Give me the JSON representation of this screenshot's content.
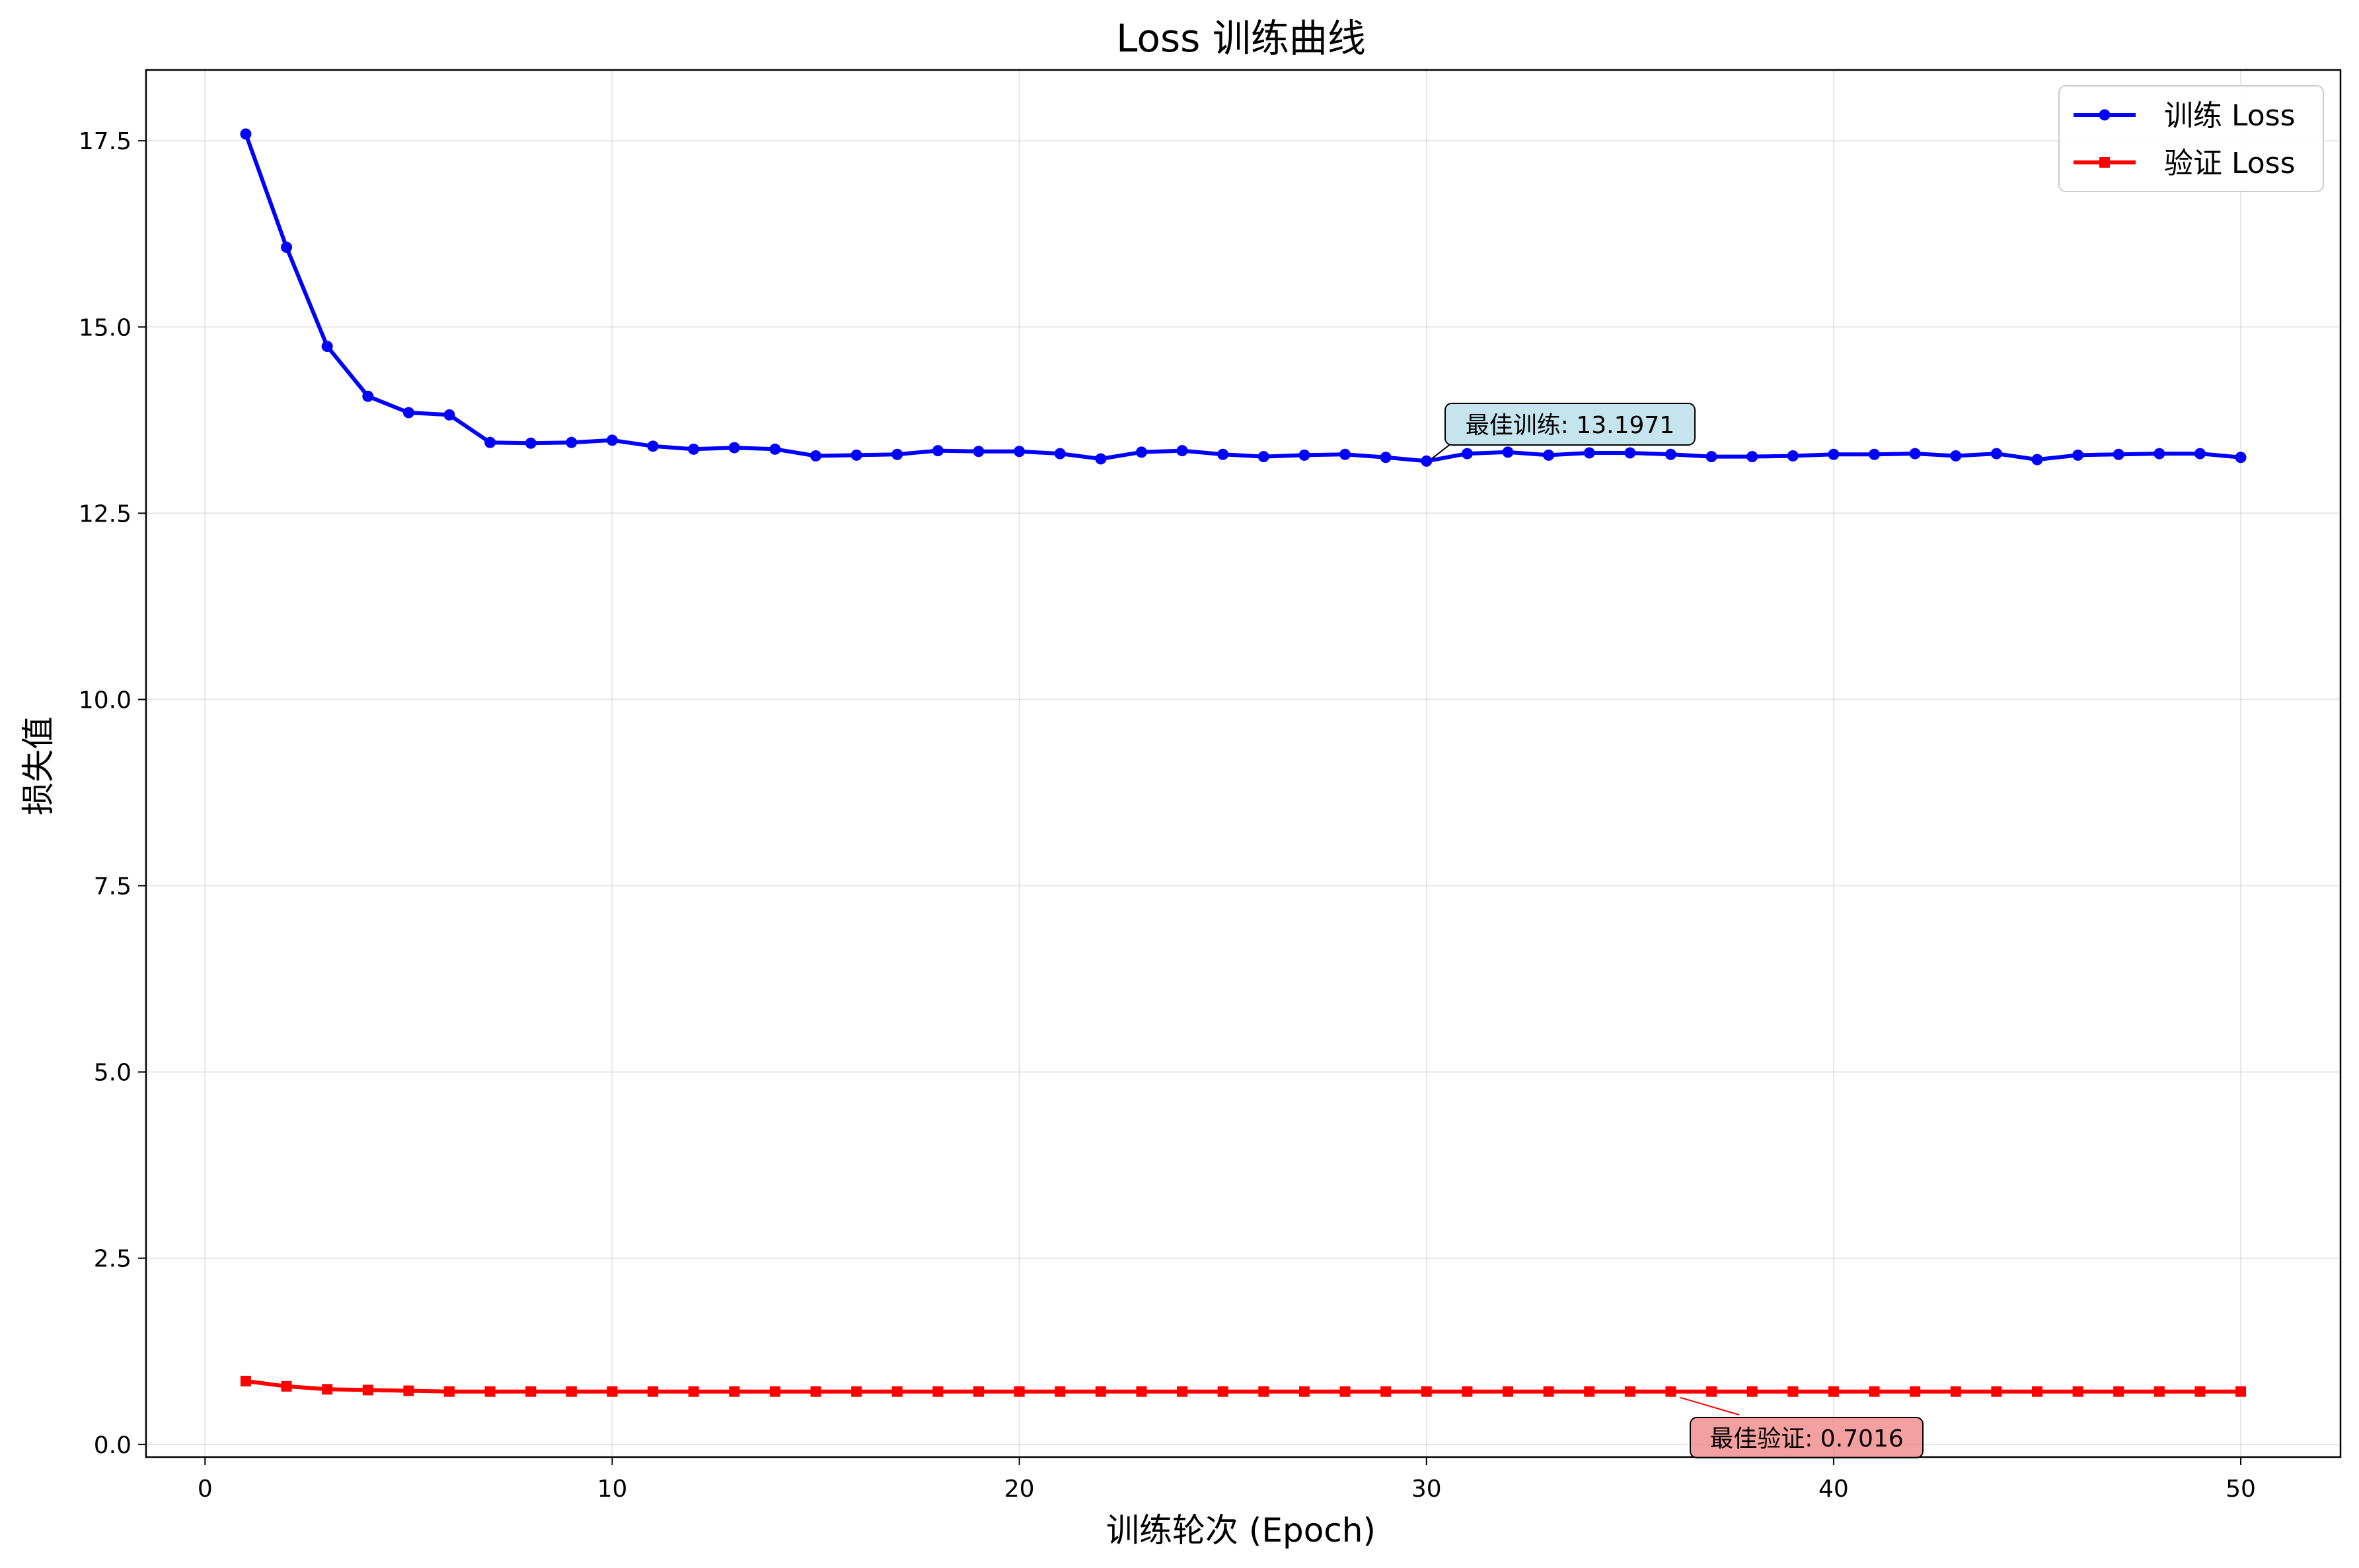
{
  "chart_data": {
    "type": "line",
    "title": "Loss 训练曲线",
    "xlabel": "训练轮次 (Epoch)",
    "ylabel": "损失值",
    "xlim": [
      -1.45,
      52.45
    ],
    "ylim": [
      -0.17,
      18.45
    ],
    "xticks": [
      0,
      10,
      20,
      30,
      40,
      50
    ],
    "yticks": [
      0.0,
      2.5,
      5.0,
      7.5,
      10.0,
      12.5,
      15.0,
      17.5
    ],
    "grid": true,
    "legend_position": "top-right",
    "x": [
      1,
      2,
      3,
      4,
      5,
      6,
      7,
      8,
      9,
      10,
      11,
      12,
      13,
      14,
      15,
      16,
      17,
      18,
      19,
      20,
      21,
      22,
      23,
      24,
      25,
      26,
      27,
      28,
      29,
      30,
      31,
      32,
      33,
      34,
      35,
      36,
      37,
      38,
      39,
      40,
      41,
      42,
      43,
      44,
      45,
      46,
      47,
      48,
      49,
      50
    ],
    "series": [
      {
        "name": "训练 Loss",
        "color": "#0000ff",
        "marker": "circle",
        "values": [
          17.59,
          16.07,
          14.74,
          14.07,
          13.85,
          13.82,
          13.45,
          13.44,
          13.45,
          13.48,
          13.4,
          13.36,
          13.38,
          13.36,
          13.27,
          13.28,
          13.29,
          13.34,
          13.33,
          13.33,
          13.3,
          13.23,
          13.32,
          13.34,
          13.29,
          13.26,
          13.28,
          13.29,
          13.25,
          13.2,
          13.3,
          13.32,
          13.28,
          13.31,
          13.31,
          13.29,
          13.26,
          13.26,
          13.27,
          13.29,
          13.29,
          13.3,
          13.27,
          13.3,
          13.22,
          13.28,
          13.29,
          13.3,
          13.3,
          13.25
        ]
      },
      {
        "name": "验证 Loss",
        "color": "#ff0000",
        "marker": "square",
        "values": [
          0.85,
          0.78,
          0.74,
          0.73,
          0.72,
          0.71,
          0.71,
          0.71,
          0.71,
          0.71,
          0.71,
          0.71,
          0.71,
          0.71,
          0.71,
          0.71,
          0.71,
          0.71,
          0.71,
          0.71,
          0.71,
          0.71,
          0.71,
          0.71,
          0.71,
          0.71,
          0.71,
          0.71,
          0.71,
          0.71,
          0.71,
          0.71,
          0.71,
          0.71,
          0.71,
          0.71,
          0.71,
          0.71,
          0.71,
          0.71,
          0.71,
          0.71,
          0.71,
          0.71,
          0.71,
          0.71,
          0.71,
          0.71,
          0.71,
          0.71
        ]
      }
    ],
    "annotations": [
      {
        "text": "最佳训练: 13.1971",
        "x": 30,
        "y": 13.1971,
        "series": 0,
        "box_color": "#add8e6"
      },
      {
        "text": "最佳验证: 0.7016",
        "x": 36,
        "y": 0.7016,
        "series": 1,
        "box_color": "#f08080"
      }
    ]
  }
}
